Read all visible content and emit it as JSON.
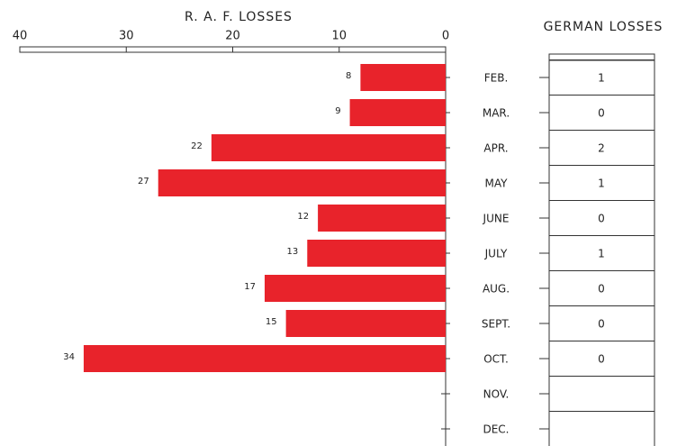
{
  "chart_data": {
    "type": "bar",
    "orientation": "horizontal",
    "categories": [
      "FEB.",
      "MAR.",
      "APR.",
      "MAY",
      "JUNE",
      "JULY",
      "AUG.",
      "SEPT.",
      "OCT.",
      "NOV.",
      "DEC."
    ],
    "series": [
      {
        "name": "R. A. F. LOSSES",
        "color": "#e8232b",
        "values": [
          8,
          9,
          22,
          27,
          12,
          13,
          17,
          15,
          34,
          null,
          null
        ]
      },
      {
        "name": "GERMAN LOSSES",
        "values": [
          1,
          0,
          2,
          1,
          0,
          1,
          0,
          0,
          0,
          null,
          null
        ]
      }
    ],
    "xlim": [
      40,
      0
    ],
    "xticks": [
      40,
      30,
      20,
      10,
      0
    ]
  }
}
